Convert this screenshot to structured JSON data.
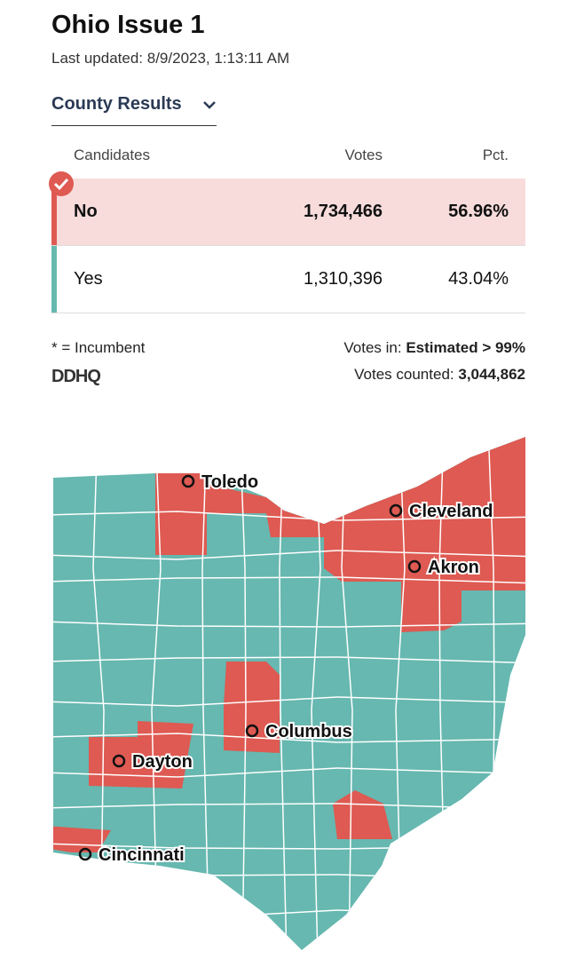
{
  "header": {
    "title": "Ohio Issue 1",
    "last_updated": "Last updated: 8/9/2023, 1:13:11 AM"
  },
  "dropdown": {
    "label": "County Results"
  },
  "table": {
    "columns": [
      "Candidates",
      "Votes",
      "Pct."
    ],
    "rows": [
      [
        "No",
        "1,734,466",
        "56.96%"
      ],
      [
        "Yes",
        "1,310,396",
        "43.04%"
      ]
    ]
  },
  "footer": {
    "incumbent_note": "* = Incumbent",
    "logo": "DDHQ",
    "votes_in_label": "Votes in:",
    "votes_in_value": "Estimated > 99%",
    "votes_counted_label": "Votes counted:",
    "votes_counted_value": "3,044,862"
  },
  "map": {
    "cities": [
      "Toledo",
      "Cleveland",
      "Akron",
      "Columbus",
      "Dayton",
      "Cincinnati"
    ]
  }
}
